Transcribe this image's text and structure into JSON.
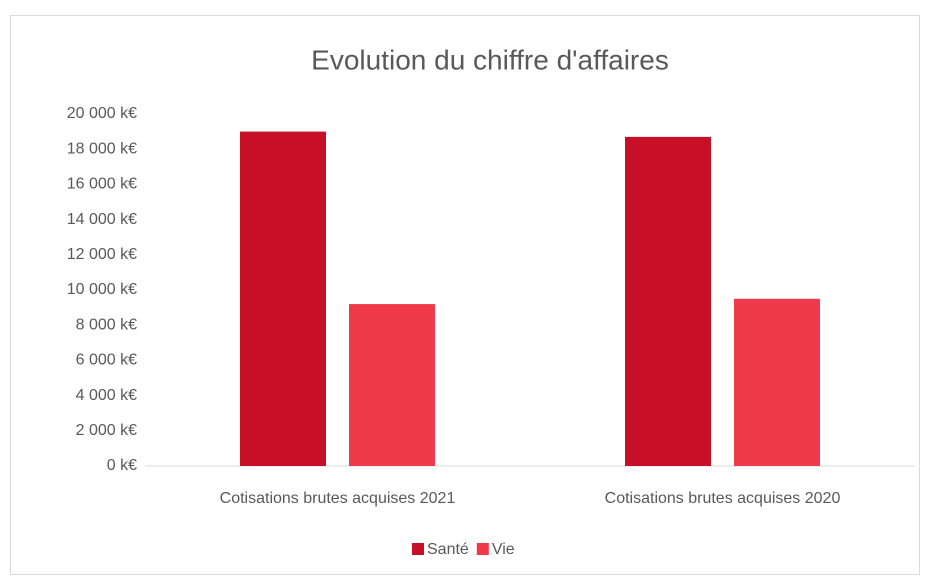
{
  "chart_data": {
    "type": "bar",
    "title": "Evolution du chiffre d'affaires",
    "categories": [
      "Cotisations brutes acquises 2021",
      "Cotisations brutes acquises 2020"
    ],
    "series": [
      {
        "name": "Santé",
        "color": "#c70f27",
        "values": [
          19000,
          18700
        ]
      },
      {
        "name": "Vie",
        "color": "#ef3a4c",
        "values": [
          9200,
          9500
        ]
      }
    ],
    "ylim": [
      0,
      20000
    ],
    "yticks": [
      {
        "value": 0,
        "label": "0 k€"
      },
      {
        "value": 2000,
        "label": "2 000 k€"
      },
      {
        "value": 4000,
        "label": "4 000 k€"
      },
      {
        "value": 6000,
        "label": "6 000 k€"
      },
      {
        "value": 8000,
        "label": "8 000 k€"
      },
      {
        "value": 10000,
        "label": "10 000 k€"
      },
      {
        "value": 12000,
        "label": "12 000 k€"
      },
      {
        "value": 14000,
        "label": "14 000 k€"
      },
      {
        "value": 16000,
        "label": "16 000 k€"
      },
      {
        "value": 18000,
        "label": "18 000 k€"
      },
      {
        "value": 20000,
        "label": "20 000 k€"
      }
    ],
    "grid": false,
    "legend": "bottom"
  }
}
